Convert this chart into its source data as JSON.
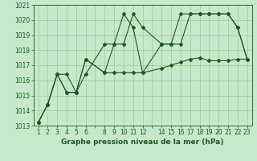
{
  "title": "Graphe pression niveau de la mer (hPa)",
  "bg_color": "#c8e8cc",
  "grid_color": "#9dc89d",
  "line_color": "#1a5c1a",
  "x_labels": [
    "1",
    "2",
    "3",
    "4",
    "5",
    "6",
    "",
    "8",
    "9",
    "10",
    "11",
    "12",
    "",
    "14",
    "15",
    "16",
    "17",
    "18",
    "19",
    "20",
    "21",
    "22",
    "23"
  ],
  "series1_x": [
    1,
    2,
    3,
    4,
    5,
    6,
    8,
    9,
    10,
    11,
    12,
    14,
    15,
    16,
    17,
    18,
    19,
    20,
    21,
    22,
    23
  ],
  "series1_y": [
    1013.2,
    1014.4,
    1016.4,
    1016.4,
    1015.2,
    1016.4,
    1018.4,
    1018.4,
    1020.4,
    1019.5,
    1016.5,
    1018.4,
    1018.4,
    1020.4,
    1020.4,
    1020.4,
    1020.4,
    1020.4,
    1020.4,
    1019.5,
    1017.4
  ],
  "series2_x": [
    1,
    2,
    3,
    4,
    5,
    6,
    8,
    9,
    10,
    11,
    12,
    14,
    15,
    16,
    17,
    18,
    19,
    20,
    21,
    22,
    23
  ],
  "series2_y": [
    1013.2,
    1014.4,
    1016.4,
    1015.2,
    1015.2,
    1017.4,
    1016.5,
    1016.5,
    1016.5,
    1016.5,
    1016.5,
    1016.8,
    1017.0,
    1017.2,
    1017.4,
    1017.5,
    1017.3,
    1017.3,
    1017.3,
    1017.4,
    1017.4
  ],
  "series3_x": [
    1,
    2,
    3,
    4,
    5,
    6,
    8,
    9,
    10,
    11,
    12,
    14,
    15,
    16,
    17,
    18,
    19,
    20,
    21,
    22,
    23
  ],
  "series3_y": [
    1013.2,
    1014.4,
    1016.4,
    1015.2,
    1015.2,
    1017.4,
    1016.5,
    1018.4,
    1018.4,
    1020.4,
    1019.5,
    1018.4,
    1018.4,
    1018.4,
    1020.4,
    1020.4,
    1020.4,
    1020.4,
    1020.4,
    1019.5,
    1017.4
  ],
  "ylim": [
    1013.0,
    1021.0
  ],
  "yticks": [
    1013,
    1014,
    1015,
    1016,
    1017,
    1018,
    1019,
    1020,
    1021
  ],
  "xlim": [
    0.5,
    23.5
  ],
  "tick_fontsize": 5.5,
  "xlabel_fontsize": 6.5
}
